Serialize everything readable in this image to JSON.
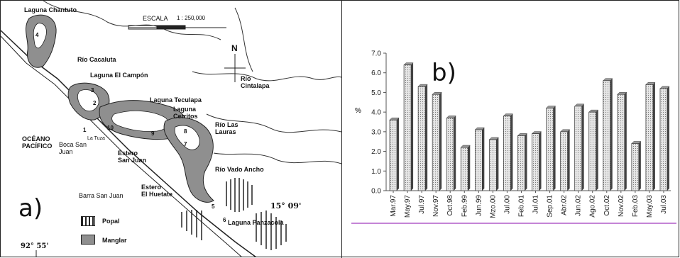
{
  "map": {
    "panel_label": "a)",
    "scale_label": "ESCALA",
    "scale_value": "1 : 250,000",
    "north": "N",
    "lat_label": "15° 09'",
    "lon_label": "92° 55'",
    "places": {
      "chantuto": "Laguna Chantuto",
      "cacaluta": "Río Cacaluta",
      "campon": "Laguna El Campón",
      "cintalapa": "Río\nCintalapa",
      "teculapa": "Laguna Teculapa",
      "cerritos": "Laguna\nCerritos",
      "las_lauras": "Río Las\nLauras",
      "oceano": "OCÉANO\nPACÍFICO",
      "boca": "Boca San\nJuan",
      "la_tuza": "La Tuza",
      "estero_sj": "Estero\nSan Juan",
      "vado_ancho": "Río Vado Ancho",
      "huetate": "Estero\nEl Huetate",
      "barra": "Barra San Juan",
      "panzacola": "Laguna Panzacola"
    },
    "numbers": [
      "4",
      "3",
      "2",
      "1",
      "10",
      "9",
      "8",
      "7",
      "5",
      "6"
    ],
    "legend": {
      "popal": "Popal",
      "manglar": "Manglar"
    },
    "colors": {
      "manglar": "#8f8f8f",
      "line": "#222222"
    }
  },
  "chart": {
    "panel_label": "b)",
    "ylabel": "%",
    "colors": {
      "bar_face": "#e6e6e6",
      "bar_side": "#444444",
      "baseline": "#b05bc8"
    }
  },
  "chart_data": {
    "type": "bar",
    "categories": [
      "Mar.97",
      "May.97",
      "Jul.97",
      "Nov.97",
      "Oct.98",
      "Feb.99",
      "Jun.99",
      "Mzo.00",
      "Jul.00",
      "Feb.01",
      "Jul.01",
      "Sep.01",
      "Abr.02",
      "Jun.02",
      "Ago.02",
      "Oct.02",
      "Nov.02",
      "Feb.03",
      "May.03",
      "Jul.03"
    ],
    "values": [
      3.6,
      6.4,
      5.3,
      4.9,
      3.7,
      2.2,
      3.1,
      2.6,
      3.8,
      2.8,
      2.9,
      4.2,
      3.0,
      4.3,
      4.0,
      5.6,
      4.9,
      2.4,
      5.4,
      5.2
    ],
    "title": "",
    "xlabel": "",
    "ylabel": "%",
    "ylim": [
      0,
      7
    ],
    "yticks": [
      "0.0",
      "1.0",
      "2.0",
      "3.0",
      "4.0",
      "5.0",
      "6.0",
      "7.0"
    ],
    "grid": false
  }
}
